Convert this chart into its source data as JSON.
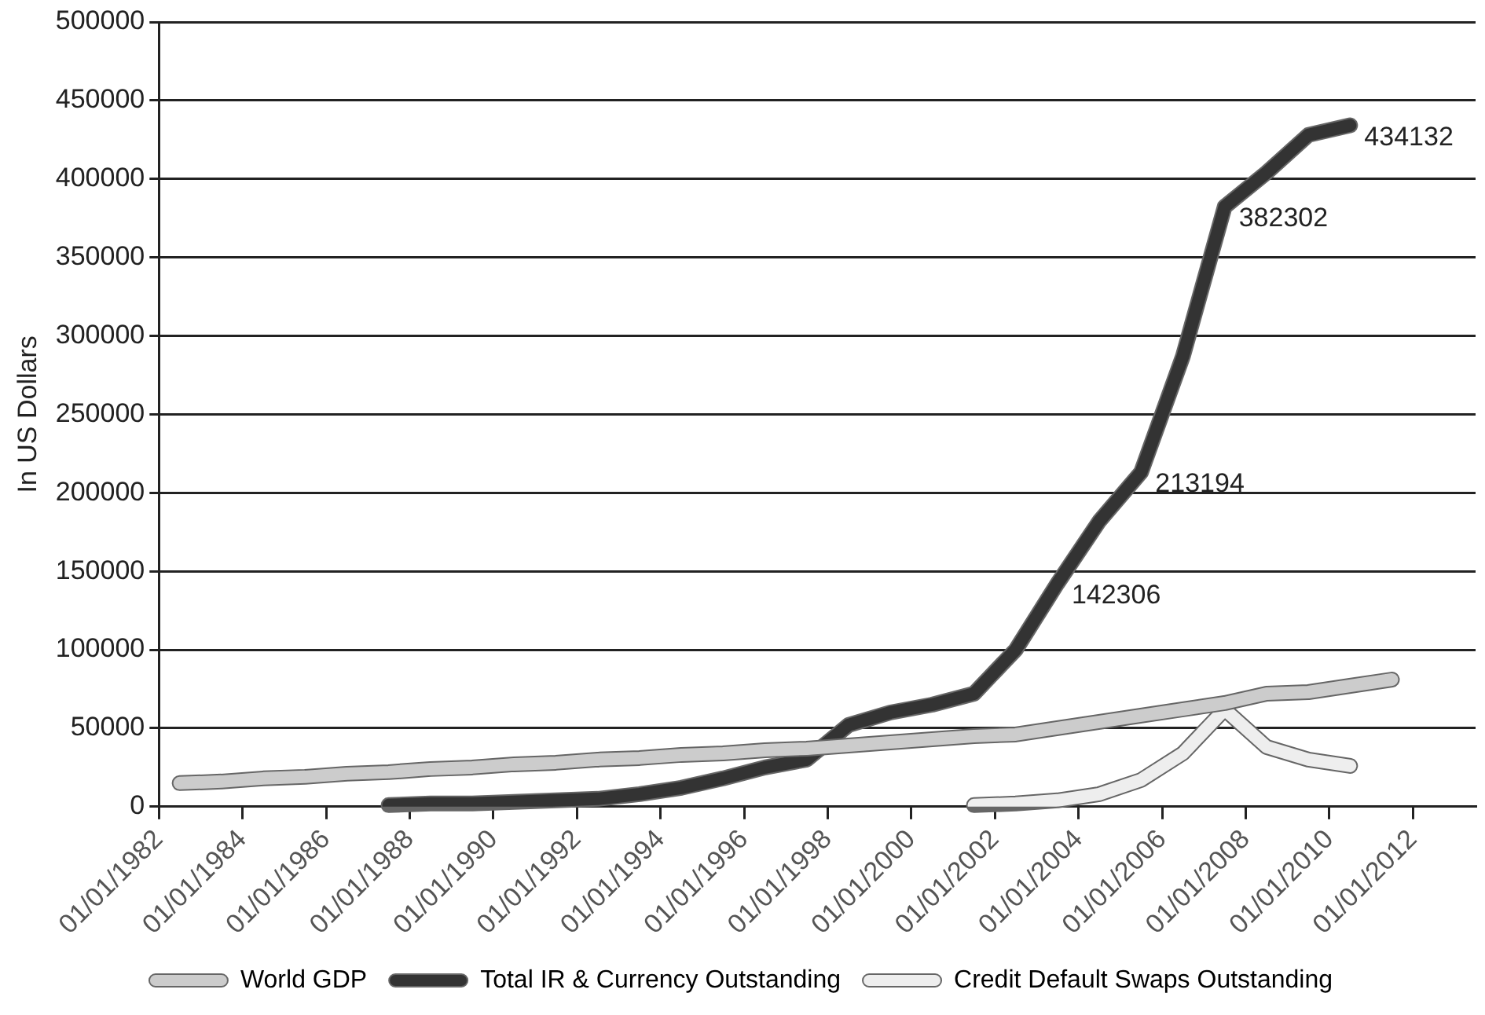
{
  "chart_data": {
    "type": "line",
    "ylabel": "In US Dollars",
    "xlim": [
      "1982-01-01",
      "2013-07-01"
    ],
    "xticks": [
      {
        "value": "1982-01-01",
        "label": "01/01/1982"
      },
      {
        "value": "1984-01-01",
        "label": "01/01/1984"
      },
      {
        "value": "1986-01-01",
        "label": "01/01/1986"
      },
      {
        "value": "1988-01-01",
        "label": "01/01/1988"
      },
      {
        "value": "1990-01-01",
        "label": "01/01/1990"
      },
      {
        "value": "1992-01-01",
        "label": "01/01/1992"
      },
      {
        "value": "1994-01-01",
        "label": "01/01/1994"
      },
      {
        "value": "1996-01-01",
        "label": "01/01/1996"
      },
      {
        "value": "1998-01-01",
        "label": "01/01/1998"
      },
      {
        "value": "2000-01-01",
        "label": "01/01/2000"
      },
      {
        "value": "2002-01-01",
        "label": "01/01/2002"
      },
      {
        "value": "2004-01-01",
        "label": "01/01/2004"
      },
      {
        "value": "2006-01-01",
        "label": "01/01/2006"
      },
      {
        "value": "2008-01-01",
        "label": "01/01/2008"
      },
      {
        "value": "2010-01-01",
        "label": "01/01/2010"
      },
      {
        "value": "2012-01-01",
        "label": "01/01/2012"
      }
    ],
    "ylim": [
      0,
      500000
    ],
    "yticks": [
      0,
      50000,
      100000,
      150000,
      200000,
      250000,
      300000,
      350000,
      400000,
      450000,
      500000
    ],
    "grid": "y",
    "legend": "bottom",
    "marker": "none",
    "line_style": "solid",
    "series": [
      {
        "name": "World GDP",
        "color": "#cccccc",
        "x": [
          "1982-07",
          "1983-07",
          "1984-07",
          "1985-07",
          "1986-07",
          "1987-07",
          "1988-07",
          "1989-07",
          "1990-07",
          "1991-07",
          "1992-07",
          "1993-07",
          "1994-07",
          "1995-07",
          "1996-07",
          "1997-07",
          "1998-07",
          "1999-07",
          "2000-07",
          "2001-07",
          "2002-07",
          "2003-07",
          "2004-07",
          "2005-07",
          "2006-07",
          "2007-07",
          "2008-07",
          "2009-07",
          "2010-07",
          "2011-07"
        ],
        "values": [
          15000,
          16000,
          18000,
          19000,
          21000,
          22000,
          24000,
          25000,
          27000,
          28000,
          30000,
          31000,
          33000,
          34000,
          36000,
          37000,
          39000,
          41000,
          43000,
          45000,
          46000,
          50000,
          54000,
          58000,
          62000,
          66000,
          72000,
          73000,
          77000,
          81000
        ]
      },
      {
        "name": "Total IR & Currency Outstanding",
        "color": "#333333",
        "x": [
          "1987-07",
          "1988-07",
          "1989-07",
          "1990-07",
          "1991-07",
          "1992-07",
          "1993-07",
          "1994-07",
          "1995-07",
          "1996-07",
          "1997-07",
          "1998-07",
          "1999-07",
          "2000-07",
          "2001-07",
          "2002-07",
          "2003-07",
          "2004-07",
          "2005-07",
          "2006-07",
          "2007-07",
          "2008-07",
          "2009-07",
          "2010-07"
        ],
        "values": [
          1000,
          2000,
          2000,
          3000,
          4000,
          5000,
          8000,
          12000,
          18000,
          25000,
          30000,
          52000,
          60000,
          65000,
          72000,
          100000,
          142306,
          182000,
          213194,
          287000,
          382302,
          404000,
          428000,
          434132
        ]
      },
      {
        "name": "Credit Default Swaps Outstanding",
        "color": "#eeeeee",
        "x": [
          "2001-07",
          "2002-07",
          "2003-07",
          "2004-07",
          "2005-07",
          "2006-07",
          "2007-07",
          "2008-07",
          "2009-07",
          "2010-07"
        ],
        "values": [
          1000,
          2000,
          4000,
          8000,
          17000,
          34000,
          62000,
          38000,
          30000,
          26000
        ]
      }
    ],
    "annotations": [
      {
        "text": "142306",
        "x": "2003-07",
        "y": 142306
      },
      {
        "text": "213194",
        "x": "2005-07",
        "y": 213194
      },
      {
        "text": "382302",
        "x": "2007-07",
        "y": 382302
      },
      {
        "text": "434132",
        "x": "2010-07",
        "y": 434132
      }
    ]
  }
}
